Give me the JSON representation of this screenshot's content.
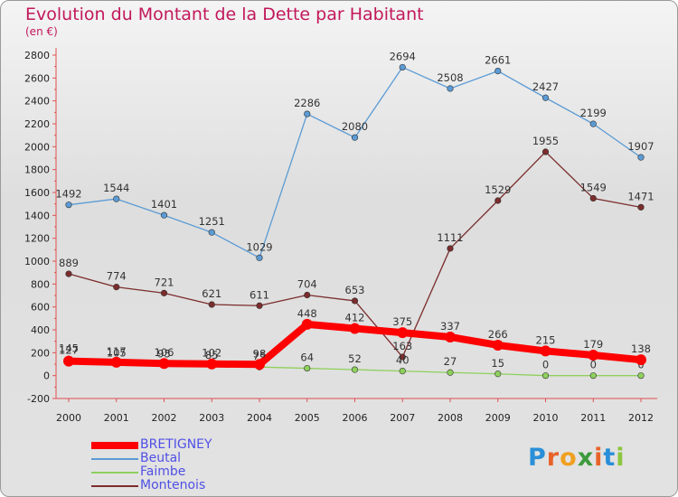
{
  "title": "Evolution du Montant de la Dette par Habitant",
  "subtitle": "(en €)",
  "logo": {
    "letters": [
      "P",
      "r",
      "o",
      "x",
      "i",
      "t",
      "i"
    ],
    "colors": [
      "#2a8fd8",
      "#e8632a",
      "#f0a020",
      "#3c9a3c",
      "#e8632a",
      "#2a8fd8",
      "#8cc63f"
    ]
  },
  "chart_data": {
    "type": "line",
    "categories": [
      "2000",
      "2001",
      "2002",
      "2003",
      "2004",
      "2005",
      "2006",
      "2007",
      "2008",
      "2009",
      "2010",
      "2011",
      "2012"
    ],
    "ylim": [
      -200,
      2800
    ],
    "y_ticks": [
      "-200",
      "0",
      "200",
      "400",
      "600",
      "800",
      "1000",
      "1200",
      "1400",
      "1600",
      "1800",
      "2000",
      "2200",
      "2400",
      "2600",
      "2800"
    ],
    "grid": false,
    "legend_position": "bottom-left",
    "series": [
      {
        "name": "Beutal",
        "color": "#5b9bd5",
        "values": [
          1492,
          1544,
          1401,
          1251,
          1029,
          2286,
          2080,
          2694,
          2508,
          2661,
          2427,
          2199,
          1907
        ],
        "labels": [
          "1492",
          "1544",
          "1401",
          "1251",
          "1029",
          "2286",
          "2080",
          "2694",
          "2508",
          "2661",
          "2427",
          "2199",
          "1907"
        ]
      },
      {
        "name": "Montenois",
        "color": "#7b2c2c",
        "values": [
          889,
          774,
          721,
          621,
          611,
          704,
          653,
          163,
          1111,
          1529,
          1955,
          1549,
          1471
        ],
        "labels": [
          "889",
          "774",
          "721",
          "621",
          "611",
          "704",
          "653",
          "163",
          "1111",
          "1529",
          "1955",
          "1549",
          "1471"
        ]
      },
      {
        "name": "Faimbe",
        "color": "#8ed05c",
        "values": [
          145,
          105,
          95,
          85,
          75,
          64,
          52,
          40,
          27,
          15,
          0,
          0,
          0
        ],
        "labels": [
          "145",
          "105",
          "95",
          "85",
          "75",
          "64",
          "52",
          "40",
          "27",
          "15",
          "0",
          "0",
          "0"
        ]
      },
      {
        "name": "BRETIGNEY",
        "color": "#ff0000",
        "values": [
          127,
          117,
          106,
          102,
          98,
          448,
          412,
          375,
          337,
          266,
          215,
          179,
          138
        ],
        "labels": [
          "127",
          "117",
          "106",
          "102",
          "98",
          "448",
          "412",
          "375",
          "337",
          "266",
          "215",
          "179",
          "138"
        ]
      }
    ],
    "legend": [
      {
        "name": "BRETIGNEY",
        "color": "#ff0000"
      },
      {
        "name": "Beutal",
        "color": "#5b9bd5"
      },
      {
        "name": "Faimbe",
        "color": "#8ed05c"
      },
      {
        "name": "Montenois",
        "color": "#7b2c2c"
      }
    ]
  }
}
